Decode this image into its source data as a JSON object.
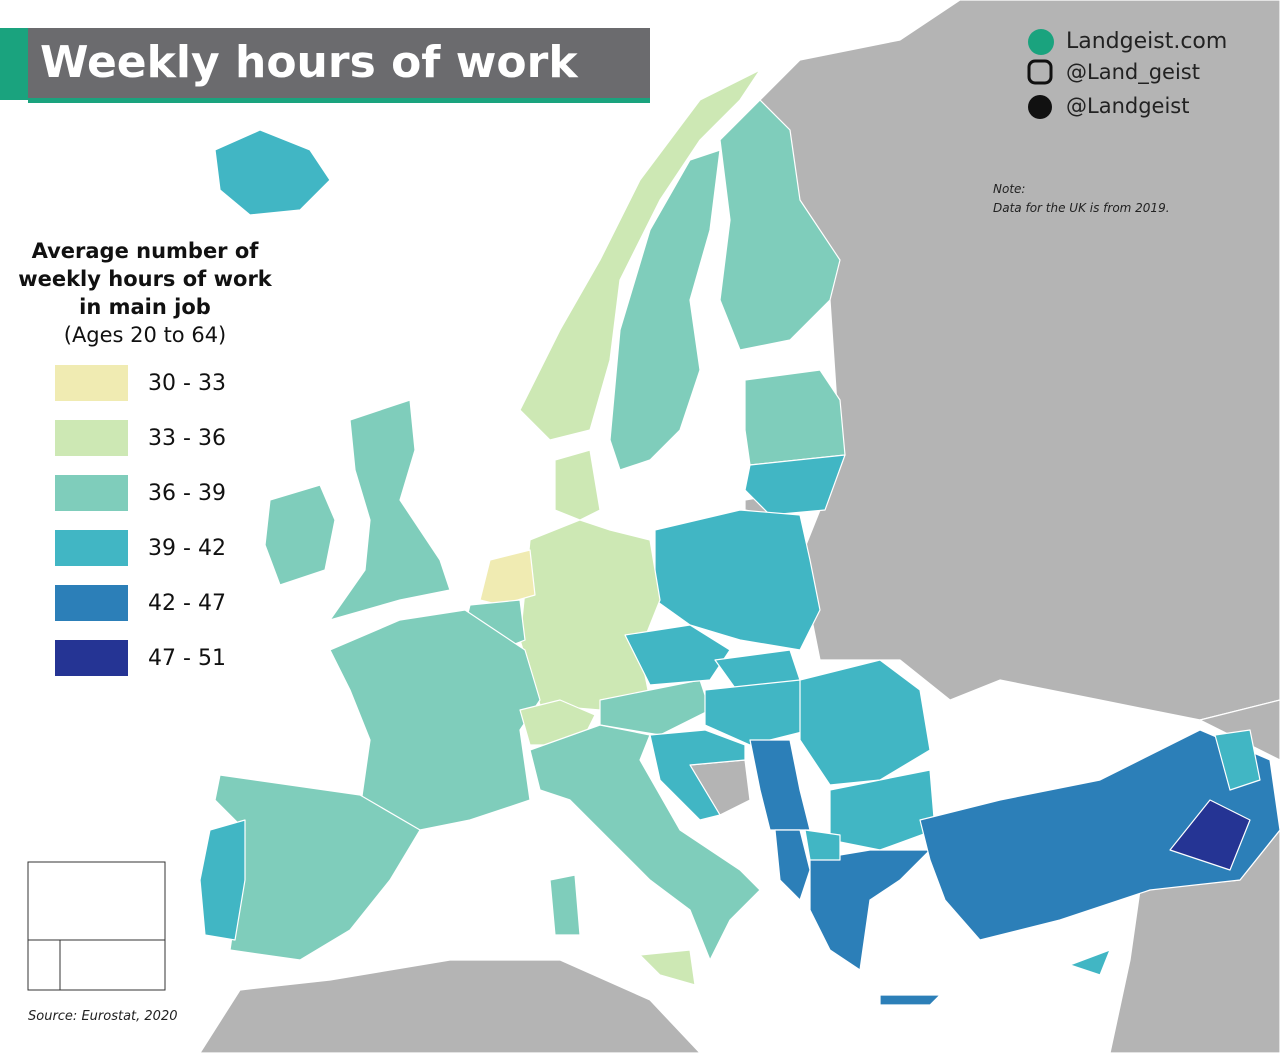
{
  "title": "Weekly hours of work",
  "branding": {
    "website": "Landgeist.com",
    "instagram": "@Land_geist",
    "twitter": "@Landgeist"
  },
  "legend": {
    "title_lines": [
      "Average number of",
      "weekly hours of work",
      "in main job"
    ],
    "subtitle": "(Ages 20 to 64)",
    "items": [
      {
        "label": "30 - 33",
        "color": "#f0ebb2"
      },
      {
        "label": "33 - 36",
        "color": "#cde8b4"
      },
      {
        "label": "36 - 39",
        "color": "#7fcdbb"
      },
      {
        "label": "39 - 42",
        "color": "#41b6c4"
      },
      {
        "label": "42 - 47",
        "color": "#2c7fb8"
      },
      {
        "label": "47 - 51",
        "color": "#253494"
      }
    ]
  },
  "note": {
    "label": "Note:",
    "text": "Data for the UK is from 2019."
  },
  "source": "Source: Eurostat, 2020"
}
